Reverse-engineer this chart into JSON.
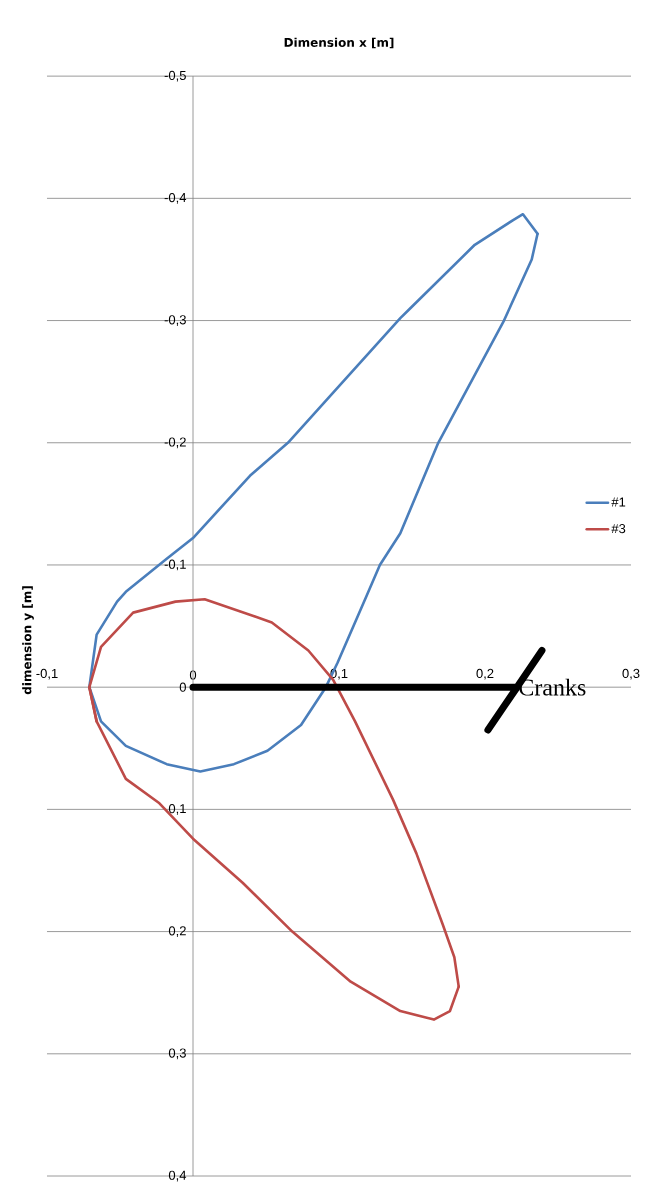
{
  "chart_data": {
    "type": "line",
    "xlabel": "Dimension x [m]",
    "ylabel": "dimension y [m]",
    "xlim": [
      -0.1,
      0.3
    ],
    "ylim": [
      0.4,
      -0.5
    ],
    "xticks": [
      {
        "value": -0.1,
        "label": "-0,1"
      },
      0,
      {
        "value": 0.1,
        "label": "0,1"
      },
      {
        "value": 0.2,
        "label": "0,2"
      },
      {
        "value": 0.3,
        "label": "0,3"
      }
    ],
    "yticks": [
      {
        "value": -0.5,
        "label": "-0,5"
      },
      {
        "value": -0.4,
        "label": "-0,4"
      },
      {
        "value": -0.3,
        "label": "-0,3"
      },
      {
        "value": -0.2,
        "label": "-0,2"
      },
      {
        "value": -0.1,
        "label": "-0,1"
      },
      0,
      {
        "value": 0.1,
        "label": "0,1"
      },
      {
        "value": 0.2,
        "label": "0,2"
      },
      {
        "value": 0.3,
        "label": "0,3"
      },
      {
        "value": 0.4,
        "label": "0,4"
      }
    ],
    "grid": "y",
    "legend": "right",
    "series": [
      {
        "name": "#1",
        "color": "#4a7ebb",
        "x": [
          0.236,
          0.232,
          0.213,
          0.168,
          0.142,
          0.128,
          0.119,
          0.099,
          0.091,
          0.074,
          0.051,
          0.028,
          0.005,
          -0.018,
          -0.046,
          -0.063,
          -0.071
        ],
        "values": [
          -0.371,
          -0.35,
          -0.3,
          -0.2,
          -0.126,
          -0.1,
          -0.075,
          -0.02,
          0,
          0.031,
          0.052,
          0.063,
          0.069,
          0.063,
          0.048,
          0.028,
          0
        ]
      },
      {
        "color": "#4a7ebb",
        "x": [
          -0.071,
          -0.066,
          -0.052,
          -0.046,
          -0.018,
          0,
          0.039,
          0.065,
          0.096,
          0.142,
          0.148,
          0.193,
          0.219,
          0.226,
          0.236
        ],
        "values": [
          0,
          -0.043,
          -0.07,
          -0.078,
          -0.105,
          -0.122,
          -0.173,
          -0.2,
          -0.241,
          -0.302,
          -0.309,
          -0.362,
          -0.382,
          -0.387,
          -0.371
        ]
      },
      {
        "name": "#3",
        "color": "#be4b48",
        "x": [
          -0.066,
          -0.071,
          -0.063,
          -0.041,
          -0.012,
          0.008,
          0.054,
          0.079,
          0.096,
          0.111,
          0.137,
          0.153,
          0.171,
          0.179,
          0.182
        ],
        "values": [
          0.028,
          0,
          -0.033,
          -0.061,
          -0.07,
          -0.072,
          -0.053,
          -0.03,
          -0.006,
          0.028,
          0.092,
          0.136,
          0.194,
          0.221,
          0.245
        ]
      },
      {
        "color": "#be4b48",
        "x": [
          0.182,
          0.176,
          0.165,
          0.142,
          0.108,
          0.068,
          0.034,
          0,
          -0.023,
          -0.046,
          -0.066,
          -0.071
        ],
        "values": [
          0.245,
          0.265,
          0.272,
          0.265,
          0.241,
          0.2,
          0.16,
          0.124,
          0.095,
          0.075,
          0.028,
          0
        ]
      },
      {
        "name": "Cranks",
        "color": "#000000",
        "x": [
          0,
          0.222,
          0.202,
          0.239
        ],
        "values": [
          0,
          0,
          0.035,
          -0.03
        ]
      }
    ]
  }
}
